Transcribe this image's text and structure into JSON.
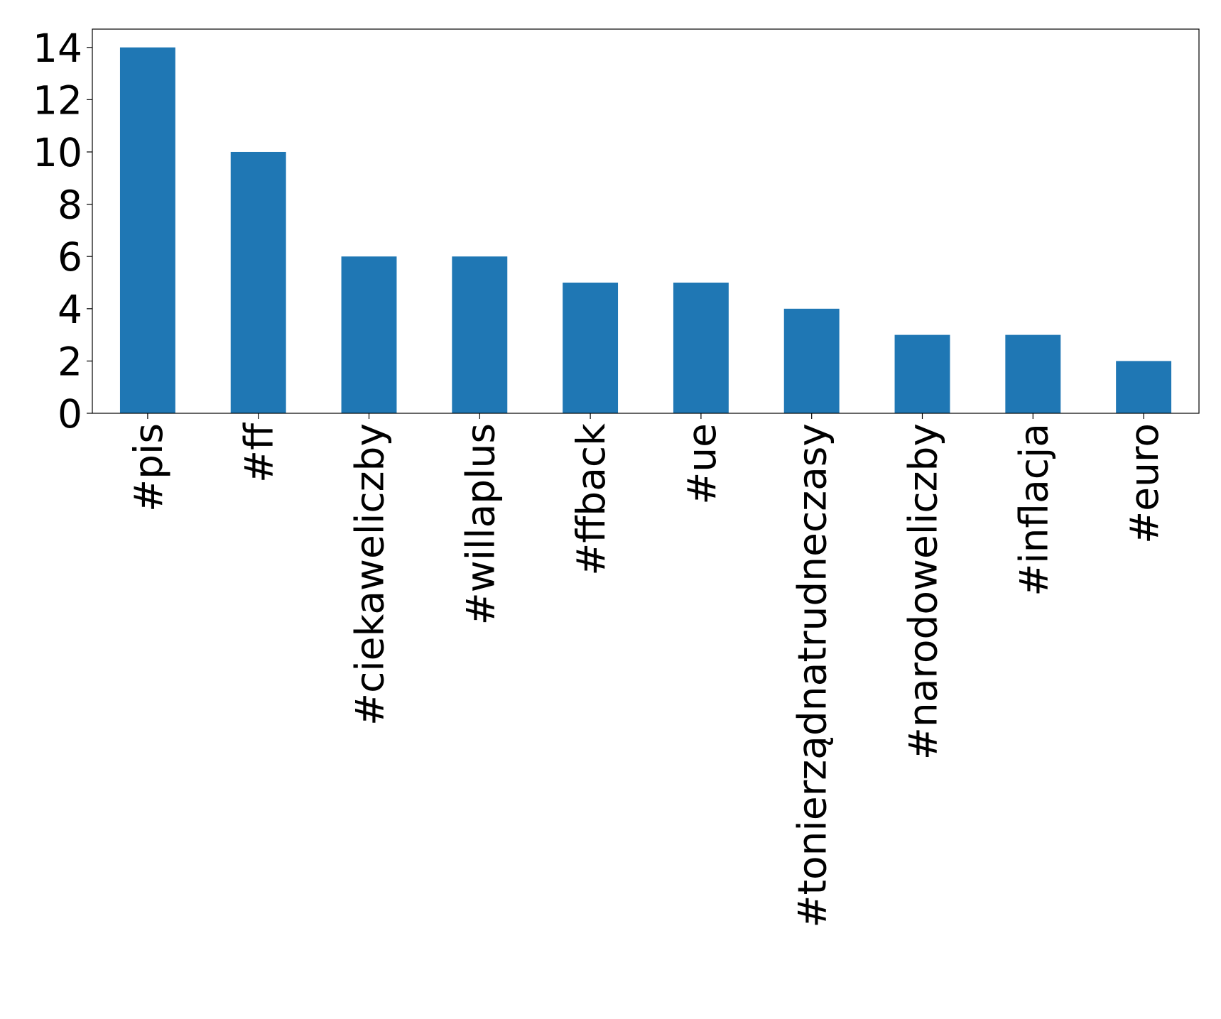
{
  "chart_data": {
    "type": "bar",
    "categories": [
      "#pis",
      "#ff",
      "#ciekaweliczby",
      "#willaplus",
      "#ffback",
      "#ue",
      "#tonierządnatrudneczasy",
      "#narodoweliczby",
      "#inflacja",
      "#euro"
    ],
    "values": [
      14,
      10,
      6,
      6,
      5,
      5,
      4,
      3,
      3,
      2
    ],
    "color": "#1f77b4",
    "ylim": [
      0,
      14.7
    ],
    "yticks": [
      0,
      2,
      4,
      6,
      8,
      10,
      12,
      14
    ],
    "grid": false
  }
}
